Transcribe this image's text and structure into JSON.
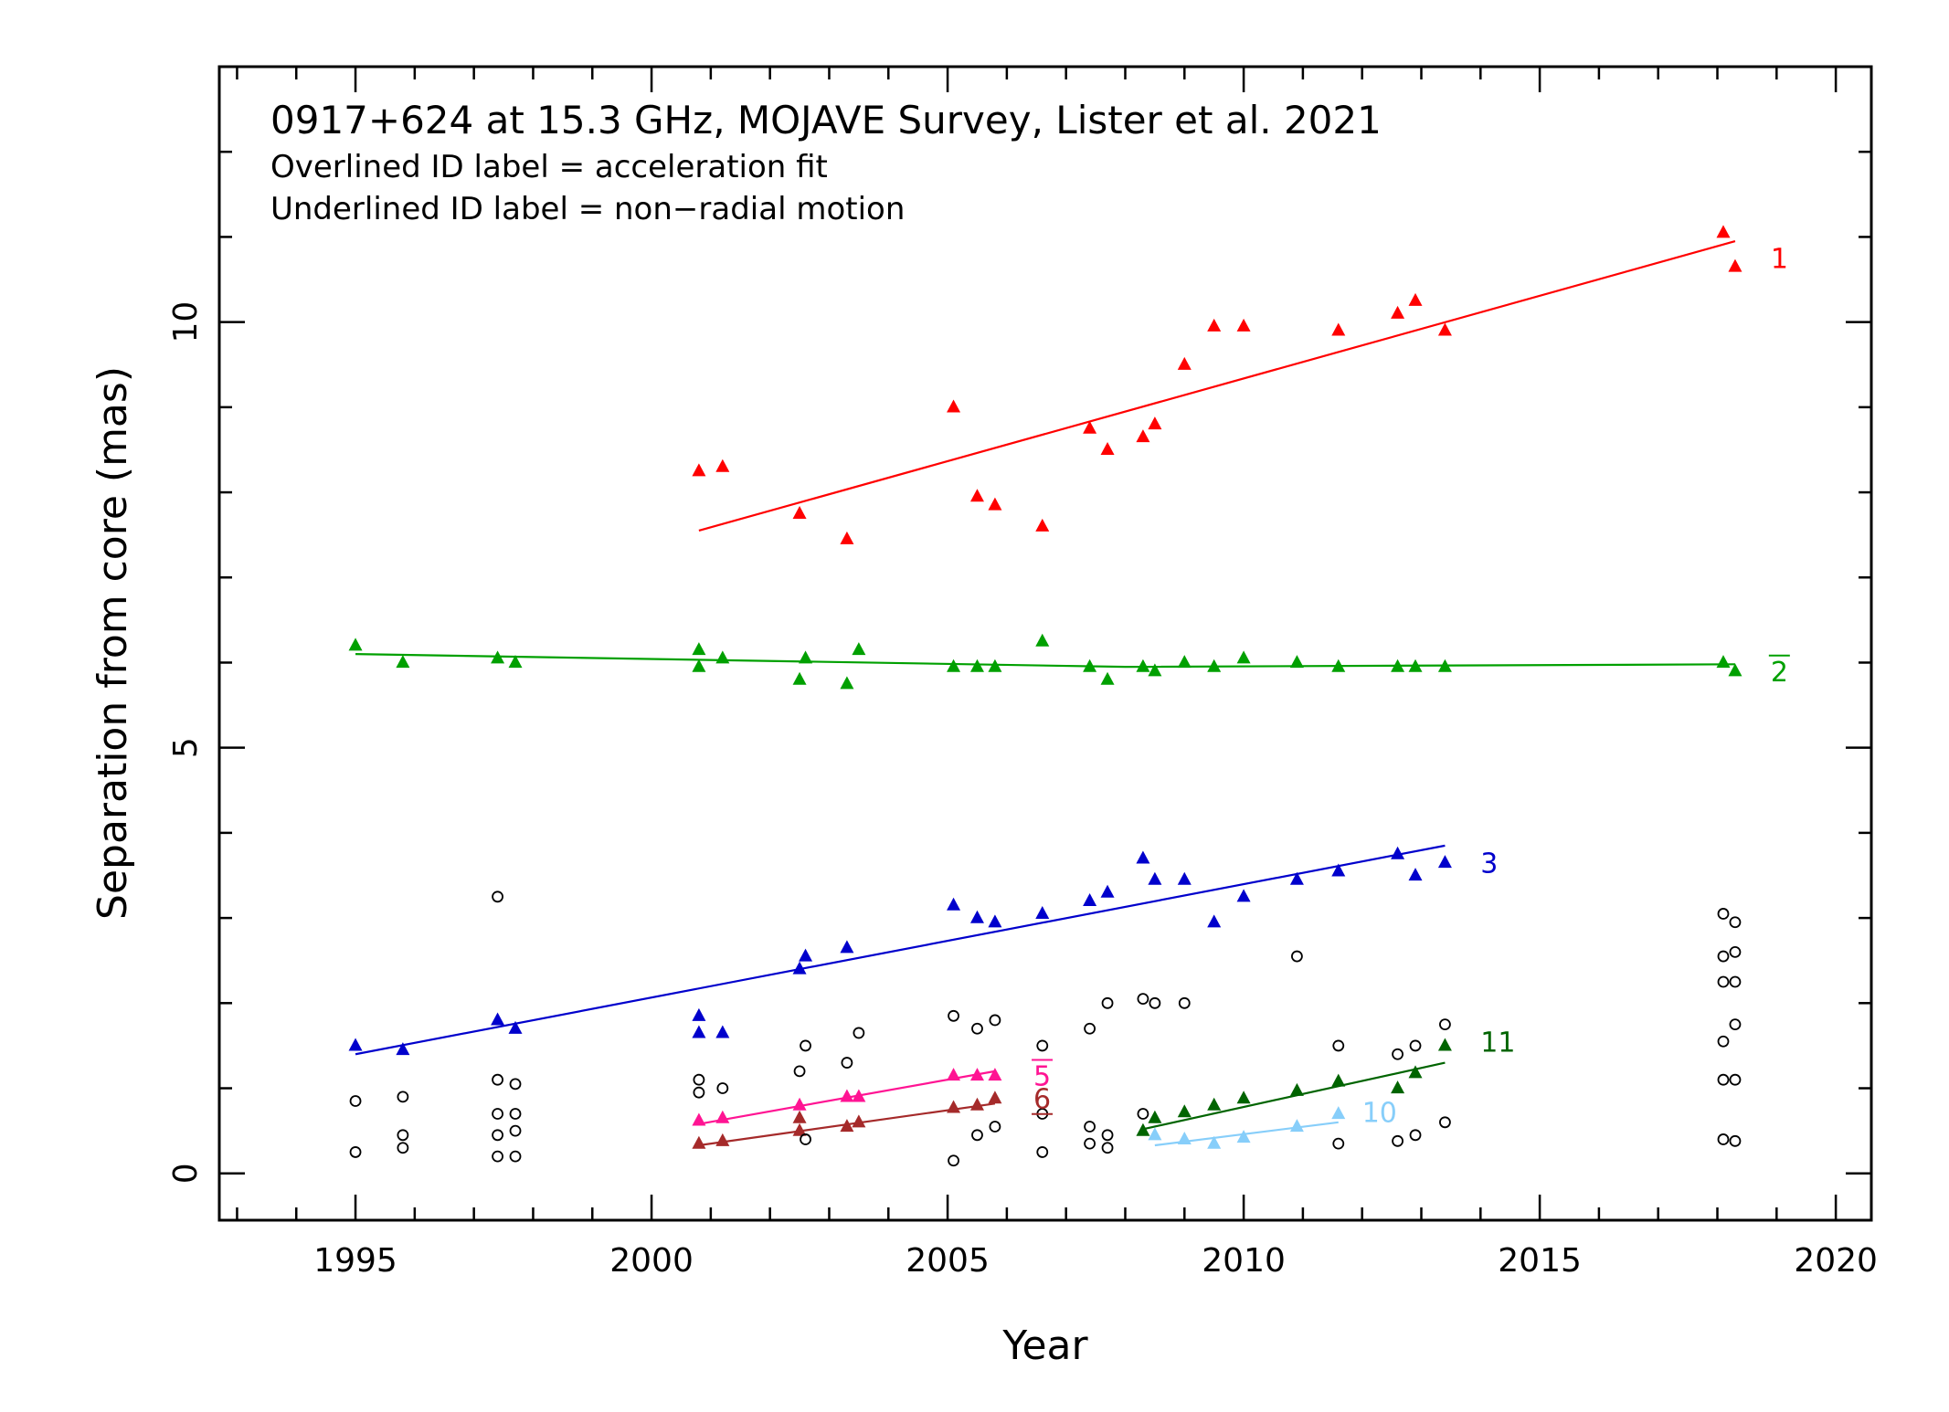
{
  "chart_data": {
    "type": "scatter",
    "title": "0917+624 at 15.3 GHz, MOJAVE Survey, Lister et al. 2021",
    "subtitle_lines": [
      "Overlined ID label = acceleration fit",
      "Underlined ID label = non−radial motion"
    ],
    "xlabel": "Year",
    "ylabel": "Separation from core (mas)",
    "xlim": [
      1992.7,
      2020.6
    ],
    "ylim": [
      -0.55,
      13.0
    ],
    "x_ticks": [
      1995,
      2000,
      2005,
      2010,
      2015,
      2020
    ],
    "y_ticks": [
      0,
      5,
      10
    ],
    "x_minor_step": 1,
    "y_minor_step": 1,
    "series": [
      {
        "name": "1",
        "color": "#ff0000",
        "label_style": "plain",
        "label_at": [
          2018.9,
          10.75
        ],
        "points": [
          [
            2000.8,
            8.25
          ],
          [
            2001.2,
            8.3
          ],
          [
            2002.5,
            7.75
          ],
          [
            2003.3,
            7.45
          ],
          [
            2005.1,
            9.0
          ],
          [
            2005.5,
            7.95
          ],
          [
            2005.8,
            7.85
          ],
          [
            2006.6,
            7.6
          ],
          [
            2007.4,
            8.75
          ],
          [
            2007.7,
            8.5
          ],
          [
            2008.3,
            8.65
          ],
          [
            2008.5,
            8.8
          ],
          [
            2009.0,
            9.5
          ],
          [
            2009.5,
            9.95
          ],
          [
            2010.0,
            9.95
          ],
          [
            2011.6,
            9.9
          ],
          [
            2012.6,
            10.1
          ],
          [
            2012.9,
            10.25
          ],
          [
            2013.4,
            9.9
          ],
          [
            2018.1,
            11.05
          ],
          [
            2018.3,
            10.65
          ]
        ],
        "fit": [
          [
            2000.8,
            7.55
          ],
          [
            2018.3,
            10.95
          ]
        ]
      },
      {
        "name": "2",
        "color": "#00a000",
        "label_style": "overline",
        "label_at": [
          2018.9,
          5.9
        ],
        "points": [
          [
            1995.0,
            6.2
          ],
          [
            1995.8,
            6.0
          ],
          [
            1997.4,
            6.05
          ],
          [
            1997.7,
            6.0
          ],
          [
            2000.8,
            6.15
          ],
          [
            2000.8,
            5.95
          ],
          [
            2001.2,
            6.05
          ],
          [
            2002.5,
            5.8
          ],
          [
            2002.6,
            6.05
          ],
          [
            2003.3,
            5.75
          ],
          [
            2003.5,
            6.15
          ],
          [
            2005.1,
            5.95
          ],
          [
            2005.5,
            5.95
          ],
          [
            2005.8,
            5.95
          ],
          [
            2006.6,
            6.25
          ],
          [
            2007.4,
            5.95
          ],
          [
            2007.7,
            5.8
          ],
          [
            2008.3,
            5.95
          ],
          [
            2008.5,
            5.9
          ],
          [
            2009.0,
            6.0
          ],
          [
            2009.5,
            5.95
          ],
          [
            2010.0,
            6.05
          ],
          [
            2010.9,
            6.0
          ],
          [
            2011.6,
            5.95
          ],
          [
            2012.6,
            5.95
          ],
          [
            2012.9,
            5.95
          ],
          [
            2013.4,
            5.95
          ],
          [
            2018.1,
            6.0
          ],
          [
            2018.3,
            5.9
          ]
        ],
        "fit": [
          [
            1995.0,
            6.1
          ],
          [
            2008.0,
            5.95
          ],
          [
            2018.3,
            5.98
          ]
        ]
      },
      {
        "name": "3",
        "color": "#0000cc",
        "label_style": "plain",
        "label_at": [
          2014.0,
          3.65
        ],
        "points": [
          [
            1995.0,
            1.5
          ],
          [
            1995.8,
            1.45
          ],
          [
            1997.4,
            1.8
          ],
          [
            1997.7,
            1.7
          ],
          [
            2000.8,
            1.85
          ],
          [
            2000.8,
            1.65
          ],
          [
            2001.2,
            1.65
          ],
          [
            2002.5,
            2.4
          ],
          [
            2002.6,
            2.55
          ],
          [
            2003.3,
            2.65
          ],
          [
            2005.1,
            3.15
          ],
          [
            2005.5,
            3.0
          ],
          [
            2005.8,
            2.95
          ],
          [
            2006.6,
            3.05
          ],
          [
            2007.4,
            3.2
          ],
          [
            2007.7,
            3.3
          ],
          [
            2008.3,
            3.7
          ],
          [
            2008.5,
            3.45
          ],
          [
            2009.0,
            3.45
          ],
          [
            2009.5,
            2.95
          ],
          [
            2010.0,
            3.25
          ],
          [
            2010.9,
            3.45
          ],
          [
            2011.6,
            3.55
          ],
          [
            2012.6,
            3.75
          ],
          [
            2012.9,
            3.5
          ],
          [
            2013.4,
            3.65
          ]
        ],
        "fit": [
          [
            1995.0,
            1.4
          ],
          [
            2013.4,
            3.85
          ]
        ]
      },
      {
        "name": "5",
        "color": "#ff1493",
        "label_style": "overline",
        "label_at": [
          2006.45,
          1.15
        ],
        "points": [
          [
            2000.8,
            0.62
          ],
          [
            2001.2,
            0.65
          ],
          [
            2002.5,
            0.8
          ],
          [
            2003.3,
            0.9
          ],
          [
            2003.5,
            0.9
          ],
          [
            2005.1,
            1.15
          ],
          [
            2005.5,
            1.15
          ],
          [
            2005.8,
            1.15
          ]
        ],
        "fit": [
          [
            2000.8,
            0.58
          ],
          [
            2005.8,
            1.2
          ]
        ]
      },
      {
        "name": "6",
        "color": "#a52a2a",
        "label_style": "underline",
        "label_at": [
          2006.45,
          0.88
        ],
        "points": [
          [
            2000.8,
            0.35
          ],
          [
            2001.2,
            0.38
          ],
          [
            2002.5,
            0.5
          ],
          [
            2002.5,
            0.65
          ],
          [
            2003.3,
            0.55
          ],
          [
            2003.5,
            0.6
          ],
          [
            2005.1,
            0.77
          ],
          [
            2005.5,
            0.8
          ],
          [
            2005.8,
            0.88
          ]
        ],
        "fit": [
          [
            2000.8,
            0.33
          ],
          [
            2005.8,
            0.82
          ]
        ]
      },
      {
        "name": "10",
        "color": "#87cefa",
        "label_style": "plain",
        "label_at": [
          2012.0,
          0.72
        ],
        "points": [
          [
            2008.5,
            0.45
          ],
          [
            2009.0,
            0.4
          ],
          [
            2009.5,
            0.35
          ],
          [
            2010.0,
            0.42
          ],
          [
            2010.9,
            0.55
          ],
          [
            2011.6,
            0.7
          ]
        ],
        "fit": [
          [
            2008.5,
            0.33
          ],
          [
            2011.6,
            0.6
          ]
        ]
      },
      {
        "name": "11",
        "color": "#006400",
        "label_style": "plain",
        "label_at": [
          2014.0,
          1.55
        ],
        "points": [
          [
            2008.3,
            0.5
          ],
          [
            2008.5,
            0.65
          ],
          [
            2009.0,
            0.72
          ],
          [
            2009.5,
            0.8
          ],
          [
            2010.0,
            0.88
          ],
          [
            2010.9,
            0.97
          ],
          [
            2011.6,
            1.08
          ],
          [
            2012.6,
            1.0
          ],
          [
            2012.9,
            1.18
          ],
          [
            2013.4,
            1.5
          ]
        ],
        "fit": [
          [
            2008.3,
            0.52
          ],
          [
            2013.4,
            1.3
          ]
        ]
      },
      {
        "name": "",
        "color": "#000000",
        "marker": "open-circle",
        "points": [
          [
            1995.0,
            0.85
          ],
          [
            1995.0,
            0.25
          ],
          [
            1995.8,
            0.9
          ],
          [
            1995.8,
            0.45
          ],
          [
            1995.8,
            0.3
          ],
          [
            1997.4,
            3.25
          ],
          [
            1997.4,
            1.1
          ],
          [
            1997.4,
            0.7
          ],
          [
            1997.4,
            0.45
          ],
          [
            1997.4,
            0.2
          ],
          [
            1997.7,
            1.05
          ],
          [
            1997.7,
            0.7
          ],
          [
            1997.7,
            0.5
          ],
          [
            1997.7,
            0.2
          ],
          [
            2000.8,
            1.1
          ],
          [
            2000.8,
            0.95
          ],
          [
            2001.2,
            1.0
          ],
          [
            2002.5,
            1.2
          ],
          [
            2002.6,
            1.5
          ],
          [
            2002.6,
            0.4
          ],
          [
            2003.3,
            1.3
          ],
          [
            2003.5,
            1.65
          ],
          [
            2005.1,
            1.85
          ],
          [
            2005.1,
            0.15
          ],
          [
            2005.5,
            1.7
          ],
          [
            2005.5,
            0.45
          ],
          [
            2005.8,
            1.8
          ],
          [
            2005.8,
            0.55
          ],
          [
            2006.6,
            1.5
          ],
          [
            2006.6,
            0.7
          ],
          [
            2006.6,
            0.25
          ],
          [
            2007.4,
            1.7
          ],
          [
            2007.4,
            0.55
          ],
          [
            2007.4,
            0.35
          ],
          [
            2007.7,
            2.0
          ],
          [
            2007.7,
            0.45
          ],
          [
            2007.7,
            0.3
          ],
          [
            2008.3,
            2.05
          ],
          [
            2008.3,
            0.7
          ],
          [
            2008.5,
            2.0
          ],
          [
            2009.0,
            2.0
          ],
          [
            2010.9,
            2.55
          ],
          [
            2011.6,
            1.5
          ],
          [
            2011.6,
            0.35
          ],
          [
            2012.6,
            1.4
          ],
          [
            2012.6,
            0.38
          ],
          [
            2012.9,
            1.5
          ],
          [
            2012.9,
            0.45
          ],
          [
            2013.4,
            1.75
          ],
          [
            2013.4,
            0.6
          ],
          [
            2018.1,
            3.05
          ],
          [
            2018.1,
            2.55
          ],
          [
            2018.1,
            2.25
          ],
          [
            2018.1,
            1.55
          ],
          [
            2018.1,
            1.1
          ],
          [
            2018.1,
            0.4
          ],
          [
            2018.3,
            2.95
          ],
          [
            2018.3,
            2.6
          ],
          [
            2018.3,
            2.25
          ],
          [
            2018.3,
            1.75
          ],
          [
            2018.3,
            1.1
          ],
          [
            2018.3,
            0.38
          ]
        ]
      }
    ]
  }
}
